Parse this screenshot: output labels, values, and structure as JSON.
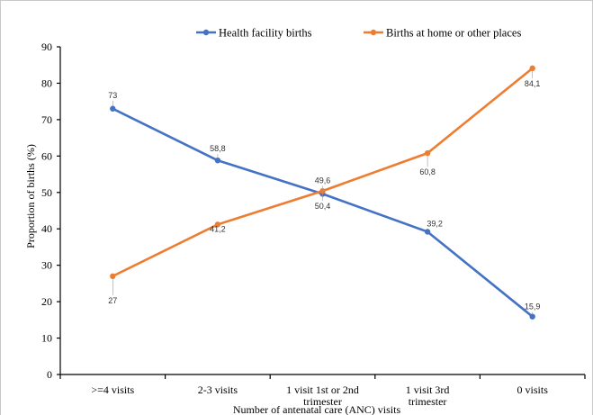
{
  "chart_data": {
    "type": "line",
    "categories": [
      ">=4 visits",
      "2-3 visits",
      "1 visit 1st or 2nd trimester",
      "1 visit 3rd trimester",
      "0 visits"
    ],
    "series": [
      {
        "name": "Health facility births",
        "values": [
          73,
          58.8,
          49.6,
          39.2,
          15.9
        ],
        "labels": [
          "73",
          "58,8",
          "49,6",
          "39,2",
          "15,9"
        ],
        "color": "#4472c4"
      },
      {
        "name": "Births at home or other places",
        "values": [
          27,
          41.2,
          50.4,
          60.8,
          84.1
        ],
        "labels": [
          "27",
          "41,2",
          "50,4",
          "60,8",
          "84,1"
        ],
        "color": "#ed7d31"
      }
    ],
    "title": "",
    "xlabel": "Number of antenatal care (ANC) visits",
    "ylabel": "Proportion of births (%)",
    "ylim": [
      0,
      90
    ],
    "yticks": [
      "0",
      "10",
      "20",
      "30",
      "40",
      "50",
      "60",
      "70",
      "80",
      "90"
    ],
    "grid": false,
    "legend_position": "top"
  }
}
